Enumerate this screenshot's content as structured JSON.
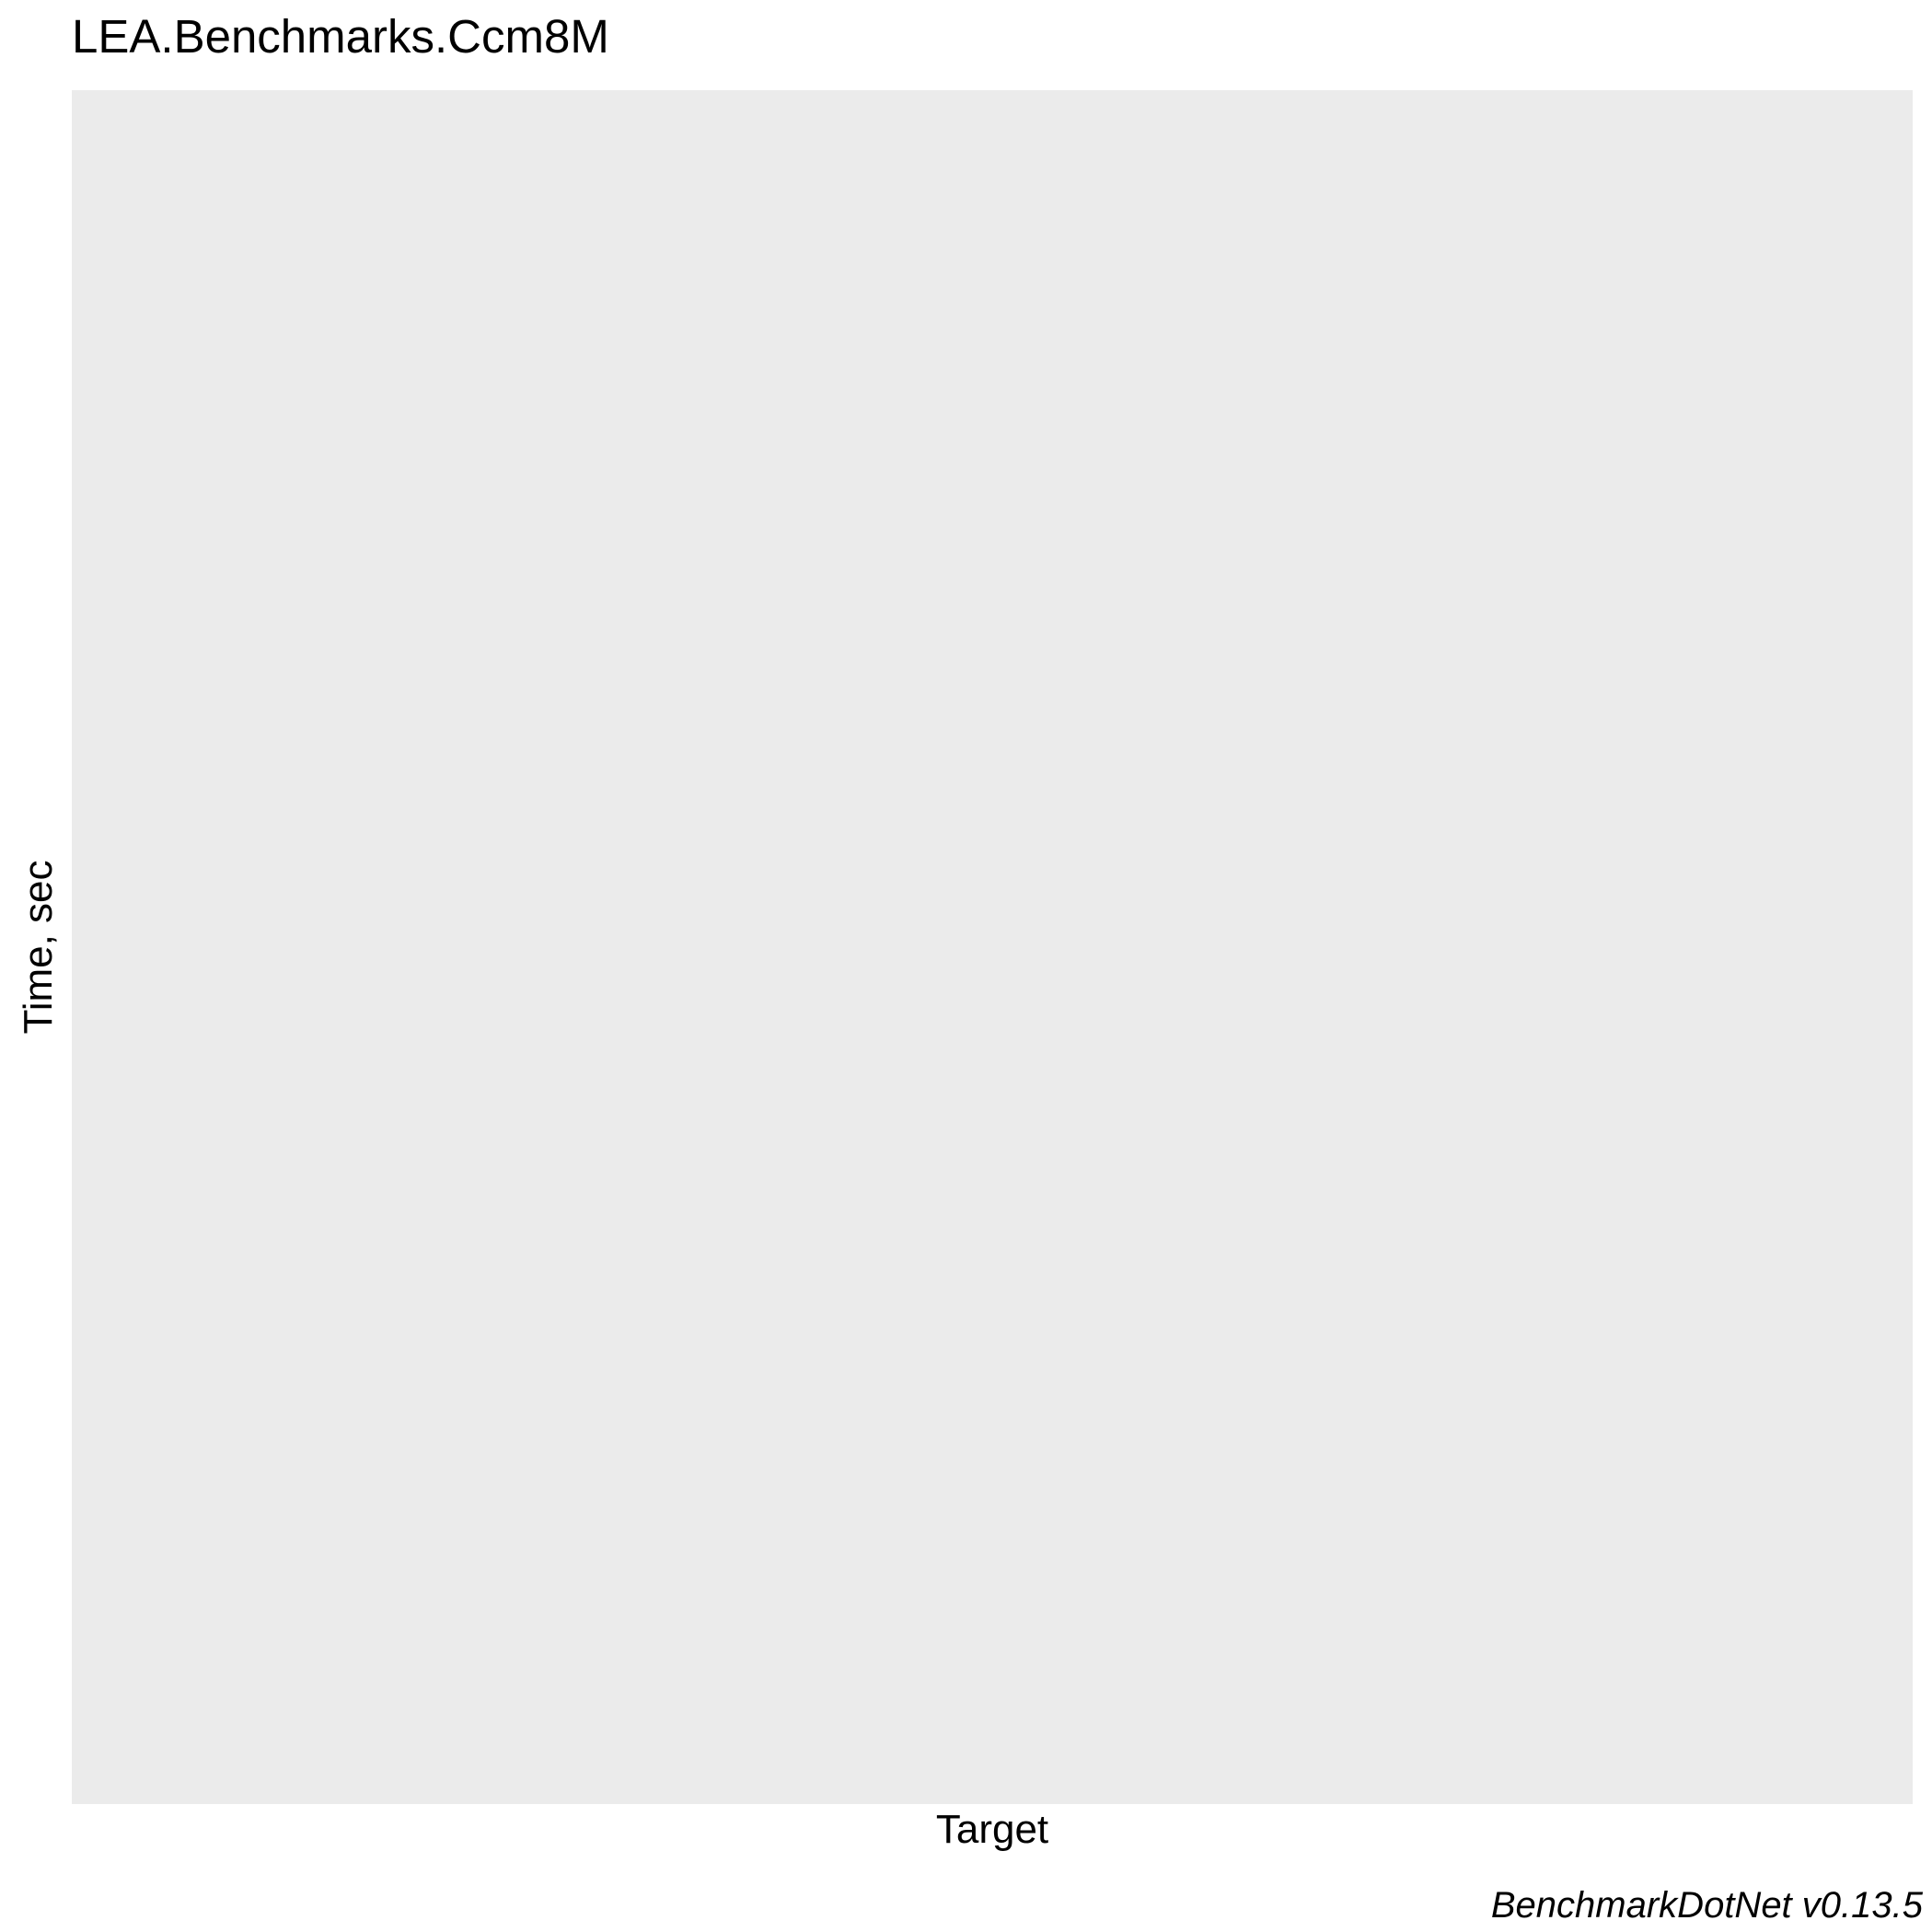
{
  "chart_data": {
    "type": "bar",
    "title": "LEA.Benchmarks.Ccm8M",
    "xlabel": "Target",
    "ylabel": "Time, sec",
    "caption": "BenchmarkDotNet v0.13.5",
    "categories": [],
    "series": [],
    "grid": false,
    "legend": "none",
    "colors": {
      "panel_background": "#EBEBEB",
      "page_background": "#FFFFFF",
      "text": "#000000"
    }
  }
}
